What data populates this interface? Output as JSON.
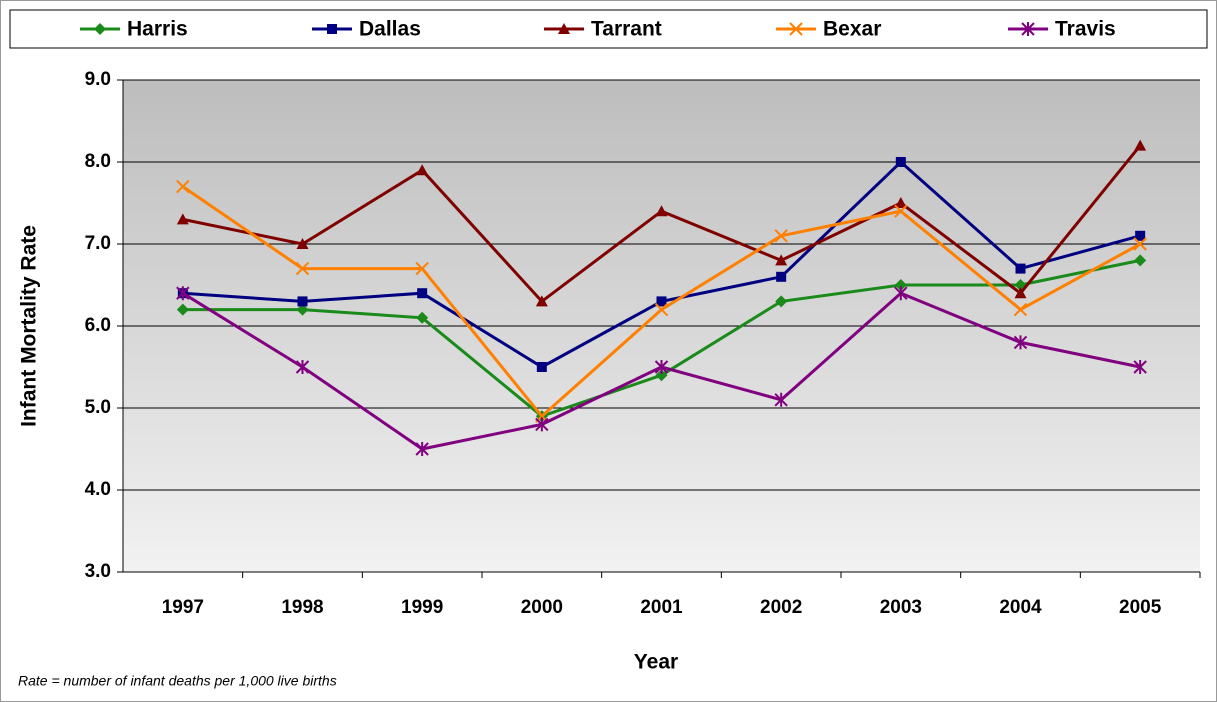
{
  "chart_data": {
    "type": "line",
    "ylabel": "Infant Mortality Rate",
    "xlabel": "Year",
    "note": "Rate = number of infant deaths per 1,000 live births",
    "categories": [
      "1997",
      "1998",
      "1999",
      "2000",
      "2001",
      "2002",
      "2003",
      "2004",
      "2005"
    ],
    "series": [
      {
        "name": "Harris",
        "color": "#1a8a1a",
        "marker": "diamond",
        "values": [
          6.2,
          6.2,
          6.1,
          4.9,
          5.4,
          6.3,
          6.5,
          6.5,
          6.8
        ]
      },
      {
        "name": "Dallas",
        "color": "#000080",
        "marker": "square",
        "values": [
          6.4,
          6.3,
          6.4,
          5.5,
          6.3,
          6.6,
          8.0,
          6.7,
          7.1
        ]
      },
      {
        "name": "Tarrant",
        "color": "#800000",
        "marker": "triangle",
        "values": [
          7.3,
          7.0,
          7.9,
          6.3,
          7.4,
          6.8,
          7.5,
          6.4,
          8.2
        ]
      },
      {
        "name": "Bexar",
        "color": "#ff8000",
        "marker": "x",
        "values": [
          7.7,
          6.7,
          6.7,
          4.9,
          6.2,
          7.1,
          7.4,
          6.2,
          7.0
        ]
      },
      {
        "name": "Travis",
        "color": "#800080",
        "marker": "star",
        "values": [
          6.4,
          5.5,
          4.5,
          4.8,
          5.5,
          5.1,
          6.4,
          5.8,
          5.5
        ]
      }
    ],
    "ylim": [
      3,
      9
    ],
    "yticks": [
      {
        "value": 3,
        "label": "3.0"
      },
      {
        "value": 4,
        "label": "4.0"
      },
      {
        "value": 5,
        "label": "5.0"
      },
      {
        "value": 6,
        "label": "6.0"
      },
      {
        "value": 7,
        "label": "7.0"
      },
      {
        "value": 8,
        "label": "8.0"
      },
      {
        "value": 9,
        "label": "9.0"
      }
    ],
    "grid": true,
    "legend": "top"
  }
}
